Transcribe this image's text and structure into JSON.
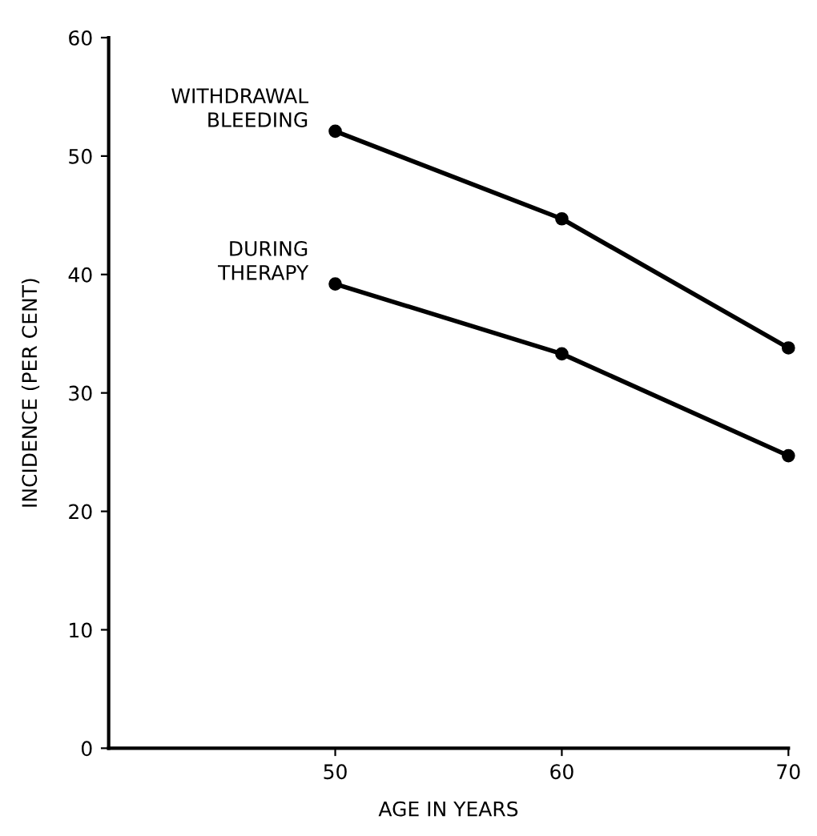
{
  "chart_data": {
    "type": "line",
    "xlabel": "AGE IN YEARS",
    "ylabel": "INCIDENCE (PER CENT)",
    "x": [
      50,
      60,
      70
    ],
    "series": [
      {
        "name": "WITHDRAWAL\nBLEEDING",
        "color": "#000000",
        "values": [
          52.1,
          44.7,
          33.8
        ]
      },
      {
        "name": "DURING\nTHERAPY",
        "color": "#000000",
        "values": [
          39.2,
          33.3,
          24.7
        ]
      }
    ],
    "xlim": [
      40,
      70
    ],
    "ylim": [
      0,
      60
    ],
    "xticks": [
      50,
      60,
      70
    ],
    "yticks": [
      0,
      10,
      20,
      30,
      40,
      50,
      60
    ],
    "grid": false,
    "legend": false,
    "marker": "circle",
    "line_style": "solid"
  }
}
